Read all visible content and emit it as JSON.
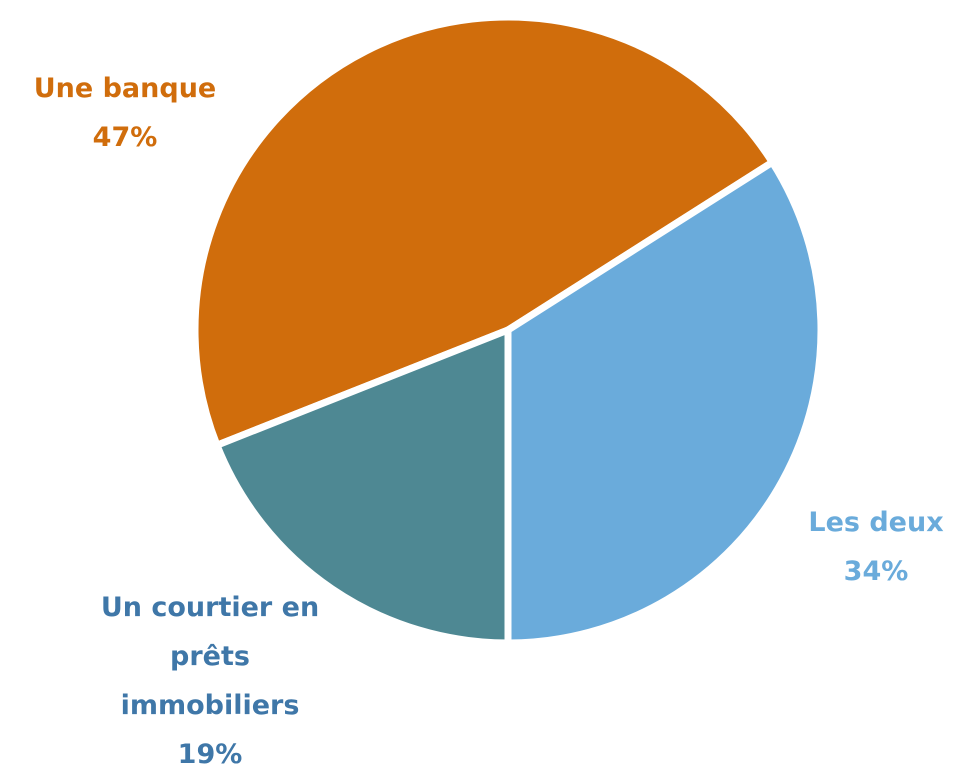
{
  "chart_data": {
    "type": "pie",
    "categories": [
      "Une banque",
      "Les deux",
      "Un courtier en prêts immobiliers"
    ],
    "values": [
      47,
      34,
      19
    ],
    "value_labels": [
      "47%",
      "34%",
      "19%"
    ],
    "colors": [
      "#d06d0c",
      "#6aabdb",
      "#4e8893"
    ],
    "label_colors": [
      "#d06d0c",
      "#6aabdb",
      "#3f77a8"
    ]
  }
}
